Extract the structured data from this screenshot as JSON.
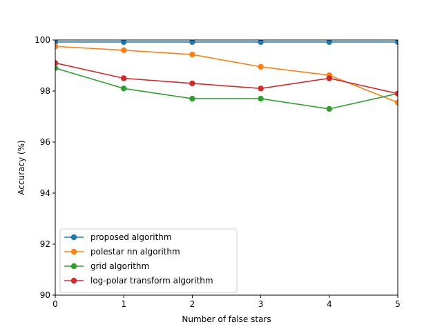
{
  "chart_data": {
    "type": "line",
    "xlabel": "Number of false stars",
    "ylabel": "Accuracy (%)",
    "x": [
      0,
      1,
      2,
      3,
      4,
      5
    ],
    "xlim": [
      0,
      5
    ],
    "ylim": [
      90,
      100
    ],
    "xticks": [
      "0",
      "1",
      "2",
      "3",
      "4",
      "5"
    ],
    "yticks": [
      "90",
      "92",
      "94",
      "96",
      "98",
      "100"
    ],
    "grid": false,
    "legend_position": "lower-left",
    "series": [
      {
        "name": "proposed algorithm",
        "color": "#1f77b4",
        "values": [
          99.92,
          99.92,
          99.92,
          99.92,
          99.92,
          99.92
        ]
      },
      {
        "name": "polestar nn algorithm",
        "color": "#ff7f0e",
        "values": [
          99.75,
          99.6,
          99.43,
          98.95,
          98.62,
          97.55
        ]
      },
      {
        "name": "grid algorithm",
        "color": "#2ca02c",
        "values": [
          98.9,
          98.1,
          97.7,
          97.7,
          97.3,
          97.9
        ]
      },
      {
        "name": "log-polar transform algorithm",
        "color": "#d62728",
        "values": [
          99.1,
          98.5,
          98.3,
          98.1,
          98.5,
          97.9
        ]
      }
    ]
  }
}
